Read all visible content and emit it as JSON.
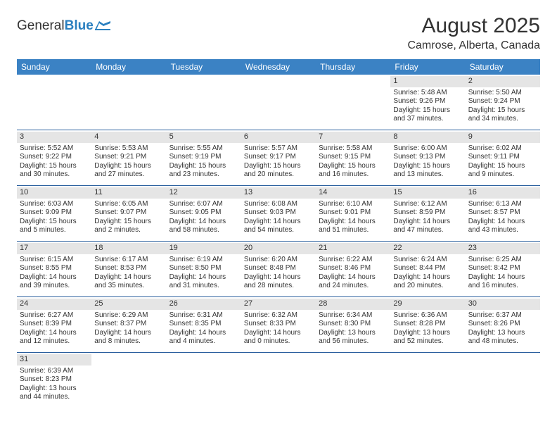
{
  "logo": {
    "text1": "General",
    "text2": "Blue"
  },
  "title": "August 2025",
  "location": "Camrose, Alberta, Canada",
  "daynames": [
    "Sunday",
    "Monday",
    "Tuesday",
    "Wednesday",
    "Thursday",
    "Friday",
    "Saturday"
  ],
  "colors": {
    "header_bg": "#3b82c4",
    "header_text": "#ffffff",
    "week_border": "#2a5f9e",
    "daynum_bg": "#e5e5e5",
    "text": "#333333",
    "logo_blue": "#2a7fbf"
  },
  "weeks": [
    [
      null,
      null,
      null,
      null,
      null,
      {
        "n": "1",
        "sr": "Sunrise: 5:48 AM",
        "ss": "Sunset: 9:26 PM",
        "d1": "Daylight: 15 hours",
        "d2": "and 37 minutes."
      },
      {
        "n": "2",
        "sr": "Sunrise: 5:50 AM",
        "ss": "Sunset: 9:24 PM",
        "d1": "Daylight: 15 hours",
        "d2": "and 34 minutes."
      }
    ],
    [
      {
        "n": "3",
        "sr": "Sunrise: 5:52 AM",
        "ss": "Sunset: 9:22 PM",
        "d1": "Daylight: 15 hours",
        "d2": "and 30 minutes."
      },
      {
        "n": "4",
        "sr": "Sunrise: 5:53 AM",
        "ss": "Sunset: 9:21 PM",
        "d1": "Daylight: 15 hours",
        "d2": "and 27 minutes."
      },
      {
        "n": "5",
        "sr": "Sunrise: 5:55 AM",
        "ss": "Sunset: 9:19 PM",
        "d1": "Daylight: 15 hours",
        "d2": "and 23 minutes."
      },
      {
        "n": "6",
        "sr": "Sunrise: 5:57 AM",
        "ss": "Sunset: 9:17 PM",
        "d1": "Daylight: 15 hours",
        "d2": "and 20 minutes."
      },
      {
        "n": "7",
        "sr": "Sunrise: 5:58 AM",
        "ss": "Sunset: 9:15 PM",
        "d1": "Daylight: 15 hours",
        "d2": "and 16 minutes."
      },
      {
        "n": "8",
        "sr": "Sunrise: 6:00 AM",
        "ss": "Sunset: 9:13 PM",
        "d1": "Daylight: 15 hours",
        "d2": "and 13 minutes."
      },
      {
        "n": "9",
        "sr": "Sunrise: 6:02 AM",
        "ss": "Sunset: 9:11 PM",
        "d1": "Daylight: 15 hours",
        "d2": "and 9 minutes."
      }
    ],
    [
      {
        "n": "10",
        "sr": "Sunrise: 6:03 AM",
        "ss": "Sunset: 9:09 PM",
        "d1": "Daylight: 15 hours",
        "d2": "and 5 minutes."
      },
      {
        "n": "11",
        "sr": "Sunrise: 6:05 AM",
        "ss": "Sunset: 9:07 PM",
        "d1": "Daylight: 15 hours",
        "d2": "and 2 minutes."
      },
      {
        "n": "12",
        "sr": "Sunrise: 6:07 AM",
        "ss": "Sunset: 9:05 PM",
        "d1": "Daylight: 14 hours",
        "d2": "and 58 minutes."
      },
      {
        "n": "13",
        "sr": "Sunrise: 6:08 AM",
        "ss": "Sunset: 9:03 PM",
        "d1": "Daylight: 14 hours",
        "d2": "and 54 minutes."
      },
      {
        "n": "14",
        "sr": "Sunrise: 6:10 AM",
        "ss": "Sunset: 9:01 PM",
        "d1": "Daylight: 14 hours",
        "d2": "and 51 minutes."
      },
      {
        "n": "15",
        "sr": "Sunrise: 6:12 AM",
        "ss": "Sunset: 8:59 PM",
        "d1": "Daylight: 14 hours",
        "d2": "and 47 minutes."
      },
      {
        "n": "16",
        "sr": "Sunrise: 6:13 AM",
        "ss": "Sunset: 8:57 PM",
        "d1": "Daylight: 14 hours",
        "d2": "and 43 minutes."
      }
    ],
    [
      {
        "n": "17",
        "sr": "Sunrise: 6:15 AM",
        "ss": "Sunset: 8:55 PM",
        "d1": "Daylight: 14 hours",
        "d2": "and 39 minutes."
      },
      {
        "n": "18",
        "sr": "Sunrise: 6:17 AM",
        "ss": "Sunset: 8:53 PM",
        "d1": "Daylight: 14 hours",
        "d2": "and 35 minutes."
      },
      {
        "n": "19",
        "sr": "Sunrise: 6:19 AM",
        "ss": "Sunset: 8:50 PM",
        "d1": "Daylight: 14 hours",
        "d2": "and 31 minutes."
      },
      {
        "n": "20",
        "sr": "Sunrise: 6:20 AM",
        "ss": "Sunset: 8:48 PM",
        "d1": "Daylight: 14 hours",
        "d2": "and 28 minutes."
      },
      {
        "n": "21",
        "sr": "Sunrise: 6:22 AM",
        "ss": "Sunset: 8:46 PM",
        "d1": "Daylight: 14 hours",
        "d2": "and 24 minutes."
      },
      {
        "n": "22",
        "sr": "Sunrise: 6:24 AM",
        "ss": "Sunset: 8:44 PM",
        "d1": "Daylight: 14 hours",
        "d2": "and 20 minutes."
      },
      {
        "n": "23",
        "sr": "Sunrise: 6:25 AM",
        "ss": "Sunset: 8:42 PM",
        "d1": "Daylight: 14 hours",
        "d2": "and 16 minutes."
      }
    ],
    [
      {
        "n": "24",
        "sr": "Sunrise: 6:27 AM",
        "ss": "Sunset: 8:39 PM",
        "d1": "Daylight: 14 hours",
        "d2": "and 12 minutes."
      },
      {
        "n": "25",
        "sr": "Sunrise: 6:29 AM",
        "ss": "Sunset: 8:37 PM",
        "d1": "Daylight: 14 hours",
        "d2": "and 8 minutes."
      },
      {
        "n": "26",
        "sr": "Sunrise: 6:31 AM",
        "ss": "Sunset: 8:35 PM",
        "d1": "Daylight: 14 hours",
        "d2": "and 4 minutes."
      },
      {
        "n": "27",
        "sr": "Sunrise: 6:32 AM",
        "ss": "Sunset: 8:33 PM",
        "d1": "Daylight: 14 hours",
        "d2": "and 0 minutes."
      },
      {
        "n": "28",
        "sr": "Sunrise: 6:34 AM",
        "ss": "Sunset: 8:30 PM",
        "d1": "Daylight: 13 hours",
        "d2": "and 56 minutes."
      },
      {
        "n": "29",
        "sr": "Sunrise: 6:36 AM",
        "ss": "Sunset: 8:28 PM",
        "d1": "Daylight: 13 hours",
        "d2": "and 52 minutes."
      },
      {
        "n": "30",
        "sr": "Sunrise: 6:37 AM",
        "ss": "Sunset: 8:26 PM",
        "d1": "Daylight: 13 hours",
        "d2": "and 48 minutes."
      }
    ],
    [
      {
        "n": "31",
        "sr": "Sunrise: 6:39 AM",
        "ss": "Sunset: 8:23 PM",
        "d1": "Daylight: 13 hours",
        "d2": "and 44 minutes."
      },
      null,
      null,
      null,
      null,
      null,
      null
    ]
  ]
}
